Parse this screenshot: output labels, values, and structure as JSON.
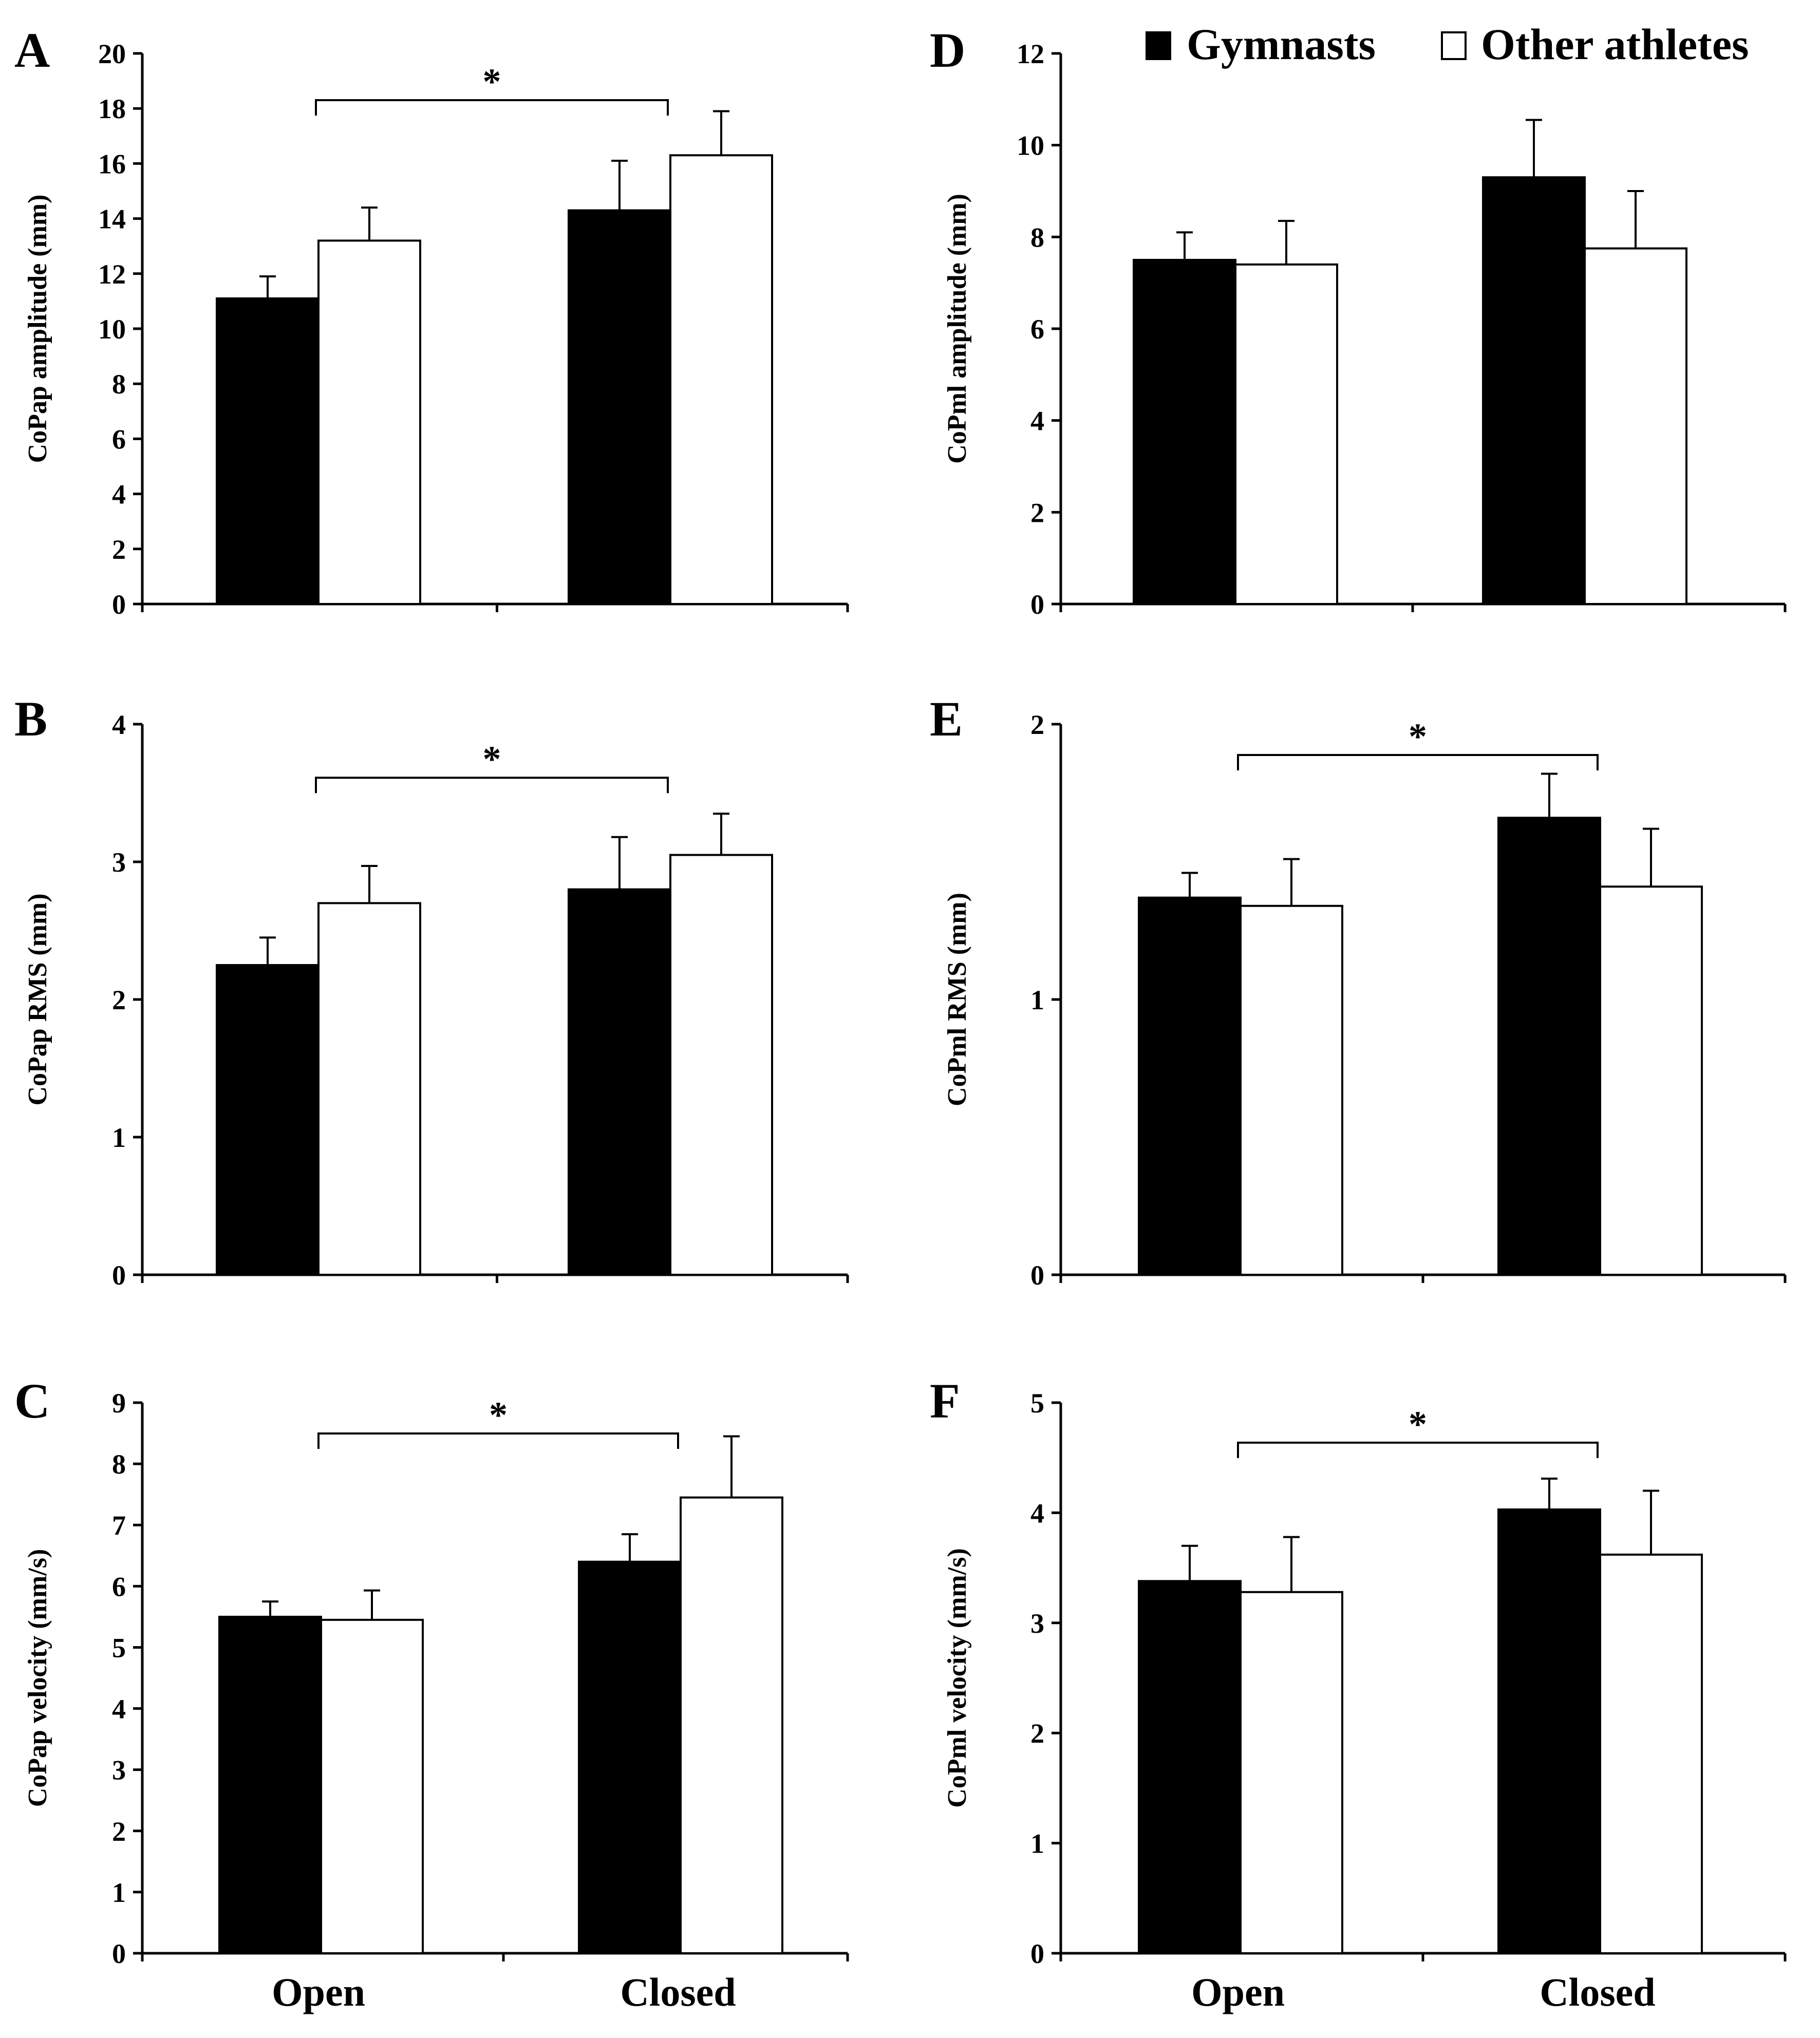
{
  "chart_data": {
    "type": "bar",
    "legend": {
      "placement": "top-right",
      "series": [
        {
          "name": "Gymnasts",
          "color": "#000000"
        },
        {
          "name": "Other athletes",
          "color": "#ffffff"
        }
      ]
    },
    "categories": [
      "Open",
      "Closed"
    ],
    "panels": [
      {
        "letter": "A",
        "ylabel": "CoPap amplitude (mm)",
        "ylim": [
          0,
          20
        ],
        "yticks": [
          "0",
          "2",
          "4",
          "6",
          "8",
          "10",
          "12",
          "14",
          "16",
          "18",
          "20"
        ],
        "series": [
          {
            "name": "Gymnasts",
            "values": [
              11.1,
              14.3
            ],
            "errors": [
              0.8,
              1.8
            ]
          },
          {
            "name": "Other athletes",
            "values": [
              13.2,
              16.3
            ],
            "errors": [
              1.2,
              1.6
            ]
          }
        ],
        "significance": "*",
        "show_categories": false
      },
      {
        "letter": "B",
        "ylabel": "CoPap RMS (mm)",
        "ylim": [
          0,
          4
        ],
        "yticks": [
          "0",
          "1",
          "2",
          "3",
          "4"
        ],
        "series": [
          {
            "name": "Gymnasts",
            "values": [
              2.25,
              2.8
            ],
            "errors": [
              0.2,
              0.38
            ]
          },
          {
            "name": "Other athletes",
            "values": [
              2.7,
              3.05
            ],
            "errors": [
              0.27,
              0.3
            ]
          }
        ],
        "significance": "*",
        "show_categories": false
      },
      {
        "letter": "C",
        "ylabel": "CoPap velocity (mm/s)",
        "ylim": [
          0,
          9
        ],
        "yticks": [
          "0",
          "1",
          "2",
          "3",
          "4",
          "5",
          "6",
          "7",
          "8",
          "9"
        ],
        "series": [
          {
            "name": "Gymnasts",
            "values": [
              5.5,
              6.4
            ],
            "errors": [
              0.25,
              0.45
            ]
          },
          {
            "name": "Other athletes",
            "values": [
              5.45,
              7.45
            ],
            "errors": [
              0.48,
              1.0
            ]
          }
        ],
        "significance": "*",
        "show_categories": true
      },
      {
        "letter": "D",
        "ylabel": "CoPml amplitude (mm)",
        "ylim": [
          0,
          12
        ],
        "yticks": [
          "0",
          "2",
          "4",
          "6",
          "8",
          "10",
          "12"
        ],
        "series": [
          {
            "name": "Gymnasts",
            "values": [
              7.5,
              9.3
            ],
            "errors": [
              0.6,
              1.25
            ]
          },
          {
            "name": "Other athletes",
            "values": [
              7.4,
              7.75
            ],
            "errors": [
              0.95,
              1.25
            ]
          }
        ],
        "significance": "",
        "show_categories": false
      },
      {
        "letter": "E",
        "ylabel": "CoPml RMS (mm)",
        "ylim": [
          0,
          2
        ],
        "yticks": [
          "0",
          "1",
          "2"
        ],
        "series": [
          {
            "name": "Gymnasts",
            "values": [
              1.37,
              1.66
            ],
            "errors": [
              0.09,
              0.16
            ]
          },
          {
            "name": "Other athletes",
            "values": [
              1.34,
              1.41
            ],
            "errors": [
              0.17,
              0.21
            ]
          }
        ],
        "significance": "*",
        "show_categories": false
      },
      {
        "letter": "F",
        "ylabel": "CoPml velocity (mm/s)",
        "ylim": [
          0,
          5
        ],
        "yticks": [
          "0",
          "1",
          "2",
          "3",
          "4",
          "5"
        ],
        "series": [
          {
            "name": "Gymnasts",
            "values": [
              3.38,
              4.03
            ],
            "errors": [
              0.32,
              0.28
            ]
          },
          {
            "name": "Other athletes",
            "values": [
              3.28,
              3.62
            ],
            "errors": [
              0.5,
              0.58
            ]
          }
        ],
        "significance": "*",
        "show_categories": true
      }
    ]
  }
}
